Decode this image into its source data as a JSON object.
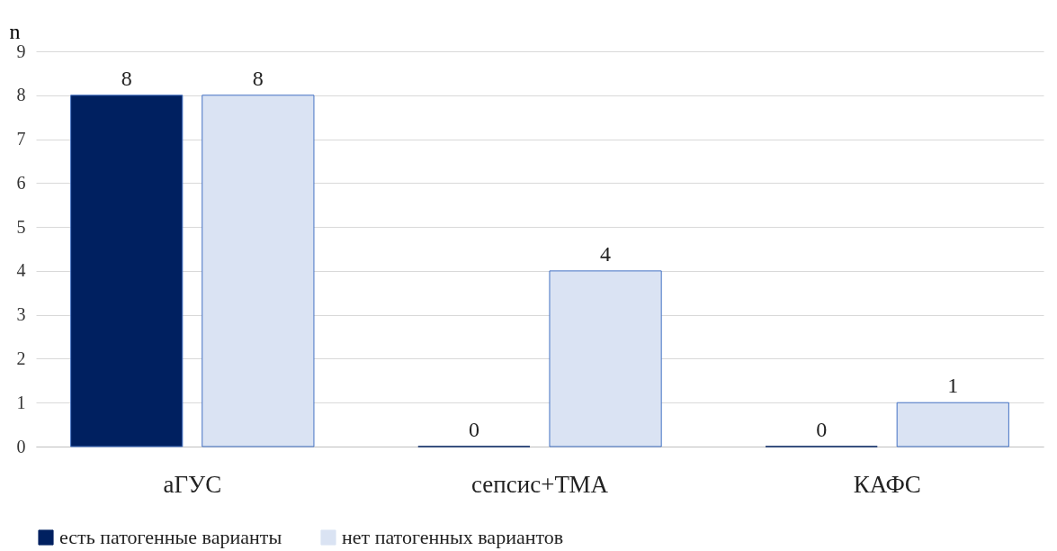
{
  "chart_data": {
    "type": "bar",
    "ylabel": "n",
    "categories": [
      "аГУС",
      "сепсис+ТМА",
      "КАФС"
    ],
    "series": [
      {
        "name": "есть патогенные варианты",
        "color": "#002060",
        "values": [
          8,
          0,
          0
        ]
      },
      {
        "name": "нет патогенных вариантов",
        "color": "#dae3f3",
        "values": [
          8,
          4,
          1
        ]
      }
    ],
    "ylim": [
      0,
      9
    ],
    "yticks": [
      0,
      1,
      2,
      3,
      4,
      5,
      6,
      7,
      8,
      9
    ],
    "grid": "y",
    "legend": "bottom",
    "data_labels": true
  }
}
